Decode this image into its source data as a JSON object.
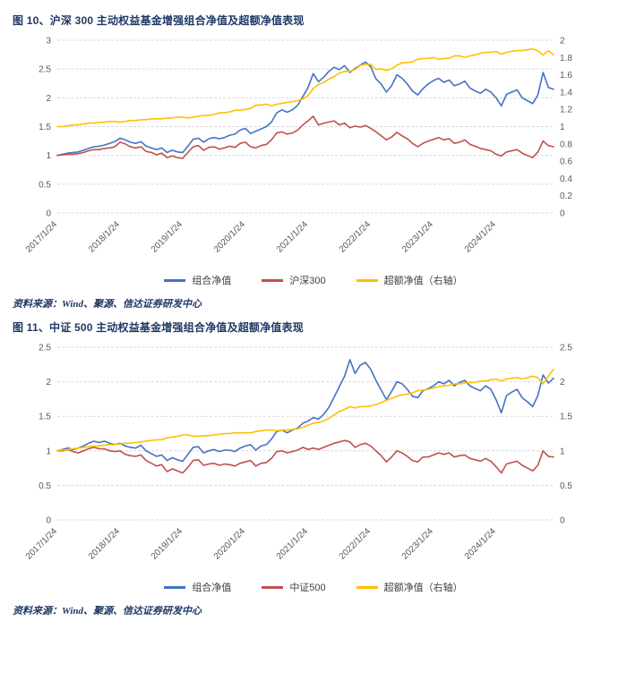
{
  "chart_data": [
    {
      "type": "line",
      "title": "图 10、沪深 300 主动权益基金增强组合净值及超额净值表现",
      "source": "资料来源：Wind、聚源、信达证券研发中心",
      "legend_position": "bottom",
      "grid": "horizontal-dashed",
      "x_tick_labels": [
        "2017/1/24",
        "2018/1/24",
        "2019/1/24",
        "2020/1/24",
        "2021/1/24",
        "2022/1/24",
        "2023/1/24",
        "2024/1/24"
      ],
      "x_tick_every": 12,
      "x_note": "series are monthly estimates; tick labels mark each January",
      "left_axis": {
        "min": 0,
        "max": 3,
        "ticks": [
          0,
          0.5,
          1,
          1.5,
          2,
          2.5,
          3
        ]
      },
      "right_axis": {
        "min": 0,
        "max": 2,
        "ticks": [
          0,
          0.2,
          0.4,
          0.6,
          0.8,
          1,
          1.2,
          1.4,
          1.6,
          1.8,
          2
        ]
      },
      "series": [
        {
          "name": "组合净值",
          "axis": "left",
          "color": "#4472C4",
          "values": [
            1.0,
            1.02,
            1.04,
            1.05,
            1.06,
            1.09,
            1.12,
            1.15,
            1.16,
            1.18,
            1.21,
            1.24,
            1.3,
            1.27,
            1.23,
            1.21,
            1.24,
            1.16,
            1.13,
            1.1,
            1.13,
            1.05,
            1.09,
            1.06,
            1.05,
            1.16,
            1.28,
            1.3,
            1.23,
            1.29,
            1.31,
            1.29,
            1.31,
            1.35,
            1.37,
            1.44,
            1.47,
            1.38,
            1.42,
            1.46,
            1.5,
            1.58,
            1.74,
            1.79,
            1.75,
            1.79,
            1.87,
            2.02,
            2.18,
            2.42,
            2.28,
            2.36,
            2.46,
            2.53,
            2.49,
            2.56,
            2.44,
            2.51,
            2.57,
            2.62,
            2.54,
            2.33,
            2.24,
            2.1,
            2.21,
            2.4,
            2.34,
            2.24,
            2.12,
            2.05,
            2.16,
            2.24,
            2.3,
            2.34,
            2.27,
            2.31,
            2.21,
            2.24,
            2.29,
            2.17,
            2.12,
            2.08,
            2.15,
            2.1,
            2.0,
            1.86,
            2.06,
            2.1,
            2.14,
            2.0,
            1.95,
            1.9,
            2.05,
            2.44,
            2.18,
            2.15
          ]
        },
        {
          "name": "沪深300",
          "axis": "left",
          "color": "#C0504D",
          "values": [
            1.0,
            1.01,
            1.02,
            1.02,
            1.03,
            1.05,
            1.08,
            1.1,
            1.1,
            1.12,
            1.13,
            1.15,
            1.23,
            1.2,
            1.15,
            1.13,
            1.15,
            1.07,
            1.05,
            1.01,
            1.04,
            0.96,
            0.99,
            0.96,
            0.95,
            1.05,
            1.15,
            1.17,
            1.09,
            1.14,
            1.15,
            1.11,
            1.13,
            1.16,
            1.14,
            1.21,
            1.23,
            1.15,
            1.13,
            1.17,
            1.19,
            1.27,
            1.39,
            1.41,
            1.37,
            1.39,
            1.44,
            1.53,
            1.6,
            1.68,
            1.53,
            1.56,
            1.58,
            1.6,
            1.53,
            1.56,
            1.48,
            1.51,
            1.49,
            1.52,
            1.47,
            1.41,
            1.34,
            1.27,
            1.32,
            1.4,
            1.34,
            1.29,
            1.21,
            1.15,
            1.21,
            1.25,
            1.28,
            1.31,
            1.27,
            1.29,
            1.21,
            1.23,
            1.27,
            1.19,
            1.16,
            1.12,
            1.1,
            1.08,
            1.02,
            0.99,
            1.06,
            1.08,
            1.1,
            1.04,
            1.0,
            0.96,
            1.06,
            1.25,
            1.17,
            1.15
          ]
        },
        {
          "name": "超额净值（右轴）",
          "axis": "right",
          "color": "#FFC000",
          "values": [
            1.0,
            1.0,
            1.01,
            1.02,
            1.02,
            1.03,
            1.04,
            1.04,
            1.05,
            1.05,
            1.06,
            1.06,
            1.05,
            1.06,
            1.07,
            1.07,
            1.08,
            1.08,
            1.09,
            1.09,
            1.09,
            1.1,
            1.1,
            1.11,
            1.11,
            1.1,
            1.11,
            1.12,
            1.13,
            1.13,
            1.14,
            1.16,
            1.16,
            1.17,
            1.19,
            1.19,
            1.2,
            1.21,
            1.25,
            1.25,
            1.26,
            1.24,
            1.26,
            1.27,
            1.28,
            1.29,
            1.3,
            1.32,
            1.36,
            1.44,
            1.49,
            1.51,
            1.55,
            1.58,
            1.62,
            1.64,
            1.64,
            1.66,
            1.71,
            1.72,
            1.72,
            1.66,
            1.67,
            1.65,
            1.67,
            1.71,
            1.74,
            1.74,
            1.75,
            1.78,
            1.79,
            1.79,
            1.8,
            1.78,
            1.79,
            1.79,
            1.82,
            1.82,
            1.8,
            1.82,
            1.83,
            1.85,
            1.86,
            1.86,
            1.87,
            1.84,
            1.86,
            1.87,
            1.88,
            1.88,
            1.89,
            1.9,
            1.88,
            1.83,
            1.88,
            1.83
          ]
        }
      ]
    },
    {
      "type": "line",
      "title": "图 11、中证 500 主动权益基金增强组合净值及超额净值表现",
      "source": "资料来源：Wind、聚源、信达证券研发中心",
      "legend_position": "bottom",
      "grid": "horizontal-dashed",
      "x_tick_labels": [
        "2017/1/24",
        "2018/1/24",
        "2019/1/24",
        "2020/1/24",
        "2021/1/24",
        "2022/1/24",
        "2023/1/24",
        "2024/1/24"
      ],
      "x_tick_every": 12,
      "x_note": "series are monthly estimates; tick labels mark each January",
      "left_axis": {
        "min": 0,
        "max": 2.5,
        "ticks": [
          0,
          0.5,
          1,
          1.5,
          2,
          2.5
        ]
      },
      "right_axis": {
        "min": 0,
        "max": 2.5,
        "ticks": [
          0,
          0.5,
          1,
          1.5,
          2,
          2.5
        ]
      },
      "series": [
        {
          "name": "组合净值",
          "axis": "left",
          "color": "#4472C4",
          "values": [
            1.0,
            1.02,
            1.04,
            1.02,
            1.04,
            1.07,
            1.11,
            1.14,
            1.12,
            1.14,
            1.11,
            1.09,
            1.11,
            1.07,
            1.05,
            1.04,
            1.08,
            1.0,
            0.96,
            0.92,
            0.94,
            0.86,
            0.9,
            0.87,
            0.85,
            0.95,
            1.05,
            1.06,
            0.97,
            1.0,
            1.02,
            0.99,
            1.01,
            1.01,
            0.99,
            1.04,
            1.07,
            1.09,
            1.01,
            1.07,
            1.09,
            1.17,
            1.28,
            1.3,
            1.26,
            1.3,
            1.33,
            1.4,
            1.43,
            1.48,
            1.46,
            1.53,
            1.63,
            1.78,
            1.93,
            2.08,
            2.32,
            2.12,
            2.24,
            2.28,
            2.18,
            2.02,
            1.88,
            1.74,
            1.86,
            2.0,
            1.97,
            1.89,
            1.79,
            1.77,
            1.87,
            1.9,
            1.94,
            2.0,
            1.97,
            2.02,
            1.94,
            1.99,
            2.02,
            1.94,
            1.9,
            1.87,
            1.94,
            1.89,
            1.74,
            1.55,
            1.8,
            1.85,
            1.89,
            1.77,
            1.71,
            1.64,
            1.8,
            2.1,
            1.98,
            2.05
          ]
        },
        {
          "name": "中证500",
          "axis": "left",
          "color": "#C0504D",
          "values": [
            1.0,
            1.0,
            1.02,
            0.99,
            0.97,
            1.0,
            1.03,
            1.05,
            1.03,
            1.03,
            1.0,
            0.99,
            1.0,
            0.95,
            0.93,
            0.92,
            0.94,
            0.86,
            0.82,
            0.78,
            0.8,
            0.7,
            0.74,
            0.71,
            0.68,
            0.76,
            0.86,
            0.87,
            0.79,
            0.81,
            0.82,
            0.79,
            0.81,
            0.8,
            0.78,
            0.82,
            0.84,
            0.86,
            0.78,
            0.82,
            0.83,
            0.89,
            0.99,
            1.0,
            0.97,
            0.99,
            1.01,
            1.05,
            1.02,
            1.04,
            1.02,
            1.05,
            1.08,
            1.11,
            1.13,
            1.15,
            1.13,
            1.05,
            1.09,
            1.11,
            1.07,
            1.0,
            0.93,
            0.84,
            0.91,
            1.0,
            0.97,
            0.92,
            0.86,
            0.84,
            0.91,
            0.91,
            0.94,
            0.97,
            0.95,
            0.97,
            0.91,
            0.93,
            0.94,
            0.89,
            0.87,
            0.85,
            0.89,
            0.85,
            0.77,
            0.68,
            0.81,
            0.83,
            0.85,
            0.79,
            0.75,
            0.71,
            0.79,
            1.0,
            0.92,
            0.91
          ]
        },
        {
          "name": "超额净值（右轴）",
          "axis": "right",
          "color": "#FFC000",
          "values": [
            1.0,
            1.01,
            1.02,
            1.03,
            1.04,
            1.05,
            1.06,
            1.07,
            1.07,
            1.08,
            1.09,
            1.09,
            1.1,
            1.11,
            1.11,
            1.12,
            1.13,
            1.14,
            1.15,
            1.16,
            1.16,
            1.19,
            1.2,
            1.21,
            1.23,
            1.23,
            1.21,
            1.21,
            1.22,
            1.22,
            1.23,
            1.24,
            1.25,
            1.25,
            1.26,
            1.26,
            1.26,
            1.26,
            1.28,
            1.29,
            1.3,
            1.3,
            1.29,
            1.3,
            1.3,
            1.31,
            1.32,
            1.34,
            1.37,
            1.4,
            1.41,
            1.43,
            1.47,
            1.52,
            1.57,
            1.6,
            1.64,
            1.62,
            1.64,
            1.64,
            1.65,
            1.67,
            1.7,
            1.73,
            1.76,
            1.79,
            1.81,
            1.82,
            1.84,
            1.87,
            1.88,
            1.89,
            1.91,
            1.93,
            1.94,
            1.95,
            1.97,
            1.97,
            1.98,
            1.99,
            1.99,
            2.01,
            2.01,
            2.03,
            2.04,
            2.01,
            2.04,
            2.05,
            2.06,
            2.04,
            2.06,
            2.08,
            2.06,
            1.97,
            2.08,
            2.18
          ]
        }
      ]
    }
  ]
}
